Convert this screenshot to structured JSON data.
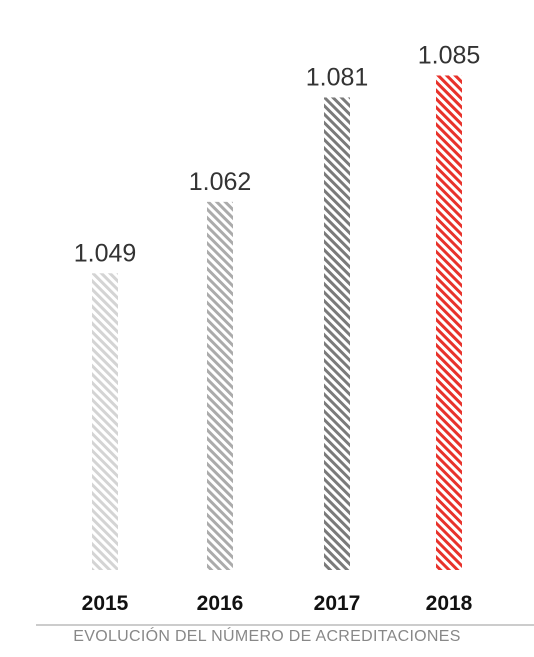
{
  "chart_data": {
    "type": "bar",
    "title": "EVOLUCIÓN DEL NÚMERO DE ACREDITACIONES",
    "categories": [
      "2015",
      "2016",
      "2017",
      "2018"
    ],
    "values": [
      1049,
      1062,
      1081,
      1085
    ],
    "value_labels": [
      "1.049",
      "1.062",
      "1.081",
      "1.085"
    ],
    "colors": [
      "#d4d4d4",
      "#ababab",
      "#7a7a7a",
      "#e8322b"
    ],
    "ylim": [
      995,
      1090
    ],
    "grid": false,
    "legend": "none"
  }
}
